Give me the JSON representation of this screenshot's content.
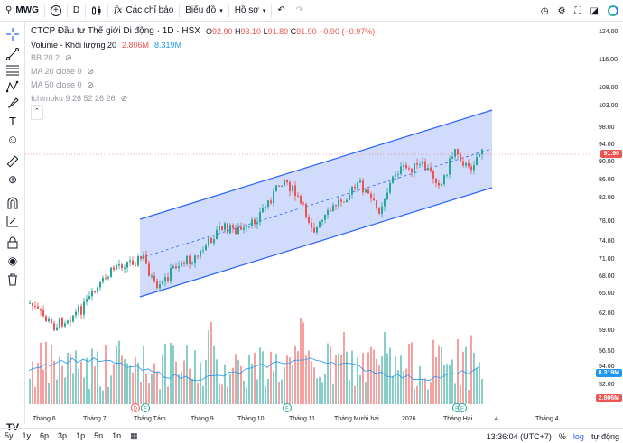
{
  "topbar": {
    "symbol": "MWG",
    "interval": "D",
    "indicators_label": "Các chỉ báo",
    "chart_type_label": "Biểu đồ",
    "profile_label": "Hồ sơ"
  },
  "legend": {
    "title": "CTCP Đầu tư Thế giới Di động · 1D · HSX",
    "o_label": "O",
    "o_value": "92.90",
    "h_label": "H",
    "h_value": "93.10",
    "l_label": "L",
    "l_value": "91.80",
    "c_label": "C",
    "c_value": "91.90",
    "change": "−0.90 (−0.97%)",
    "volume_label": "Volume - Khối lượng 20",
    "volume_value": "2.806M",
    "volume_ma": "8.319M",
    "bb": "BB 20 2",
    "ma20": "MA 20 close 0",
    "ma50": "MA 50 close 0",
    "ichimoku": "Ichimoku 9 26 52 26 26"
  },
  "price_scale": {
    "ticks": [
      "124.00",
      "116.00",
      "108.00",
      "103.00",
      "98.00",
      "94.00",
      "90.00",
      "86.00",
      "82.00",
      "78.00",
      "74.00",
      "71.00",
      "68.00",
      "65.00",
      "62.00",
      "59.00",
      "56.50",
      "54.00",
      "52.00"
    ],
    "last_price": "91.90",
    "volume_ma_badge": "8.319M",
    "volume_badge": "2.806M"
  },
  "time_axis": [
    "Tháng 6",
    "Tháng 7",
    "Tháng Tám",
    "Tháng 9",
    "Tháng 10",
    "Tháng 11",
    "Tháng Mười hai",
    "2026",
    "Tháng Hai",
    "4",
    "Tháng 4"
  ],
  "bottombar": {
    "ranges": [
      "5y",
      "1y",
      "6p",
      "3p",
      "1p",
      "5n",
      "1n"
    ],
    "time": "13:36:04 (UTC+7)",
    "percent": "%",
    "log": "log",
    "auto": "tự động"
  },
  "colors": {
    "up": "#26a69a",
    "down": "#ef5350",
    "channel": "#2962ff",
    "channel_fill": "#c5d3fb",
    "accent": "#2962ff"
  },
  "icons": {
    "left_tools": [
      "crosshair-icon",
      "trend-line-icon",
      "fib-icon",
      "pattern-icon",
      "brush-icon",
      "text-icon",
      "emoji-icon",
      "ruler-icon",
      "zoom-in-icon",
      "magnet-icon",
      "lock-drawing-icon",
      "lock-icon",
      "eye-icon",
      "trash-icon"
    ]
  }
}
